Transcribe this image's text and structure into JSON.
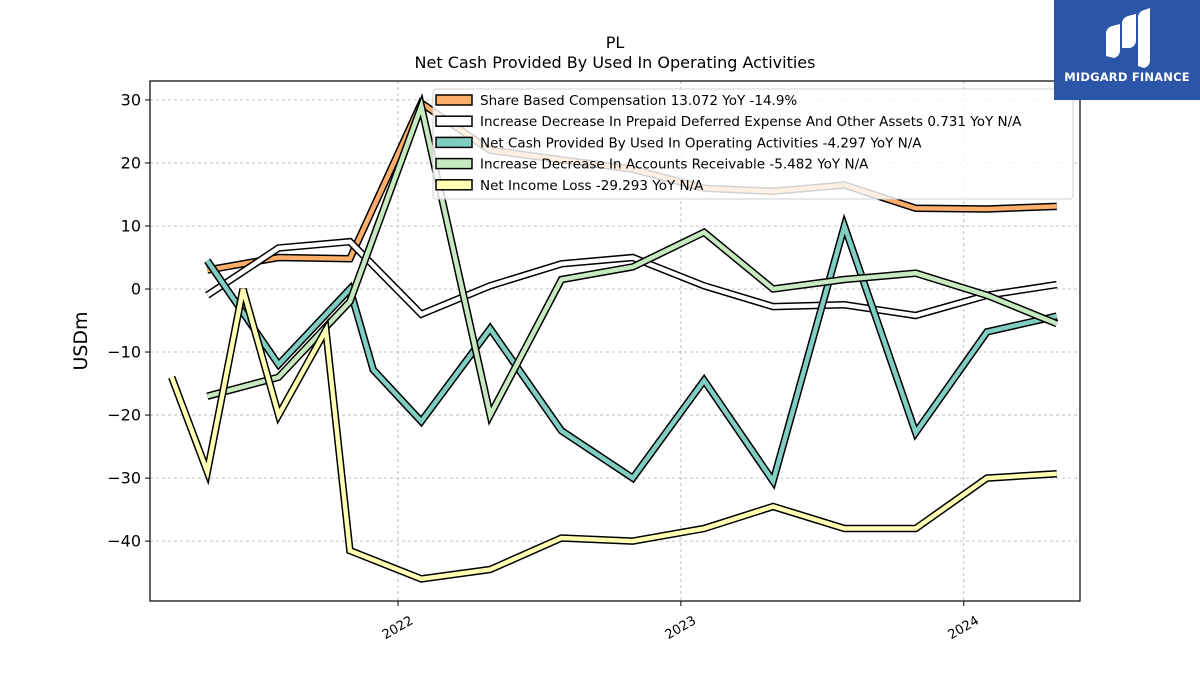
{
  "chart_data": {
    "type": "line",
    "title": "PL",
    "subtitle": "Net Cash Provided By Used In Operating Activities",
    "ylabel": "USDm",
    "xlabel": "",
    "ylim": [
      -49.5,
      33
    ],
    "xlim": [
      "2021-02-15",
      "2024-05-30"
    ],
    "yticks": [
      30,
      20,
      10,
      0,
      -10,
      -20,
      -30,
      -40
    ],
    "xticks": [
      {
        "date": "2022-01-01",
        "label": "2022"
      },
      {
        "date": "2023-01-01",
        "label": "2023"
      },
      {
        "date": "2024-01-01",
        "label": "2024"
      }
    ],
    "grid": true,
    "legend_position": "top-right",
    "series": [
      {
        "name": "Share Based Compensation",
        "legend_label": "Share Based Compensation  13.072 YoY -14.9%",
        "color": "#fdae6b",
        "points": [
          [
            "2021-04-30",
            3.0
          ],
          [
            "2021-07-31",
            5.0
          ],
          [
            "2021-10-31",
            4.8
          ],
          [
            "2022-01-31",
            29.5
          ],
          [
            "2022-04-30",
            22.0
          ],
          [
            "2022-07-31",
            20.5
          ],
          [
            "2022-10-31",
            19.0
          ],
          [
            "2023-01-31",
            16.0
          ],
          [
            "2023-04-30",
            15.5
          ],
          [
            "2023-07-31",
            16.5
          ],
          [
            "2023-10-31",
            12.8
          ],
          [
            "2024-01-31",
            12.7
          ],
          [
            "2024-04-30",
            13.1
          ]
        ]
      },
      {
        "name": "Increase Decrease In Prepaid Deferred Expense And Other Assets",
        "legend_label": "Increase Decrease In Prepaid Deferred Expense And Other Assets  0.731 YoY N/A",
        "color": "#ffffff",
        "points": [
          [
            "2021-04-30",
            -1.0
          ],
          [
            "2021-07-31",
            6.5
          ],
          [
            "2021-10-31",
            7.5
          ],
          [
            "2022-01-31",
            -4.0
          ],
          [
            "2022-04-30",
            0.5
          ],
          [
            "2022-07-31",
            4.0
          ],
          [
            "2022-10-31",
            5.0
          ],
          [
            "2023-01-31",
            0.5
          ],
          [
            "2023-04-30",
            -2.8
          ],
          [
            "2023-07-31",
            -2.5
          ],
          [
            "2023-10-31",
            -4.2
          ],
          [
            "2024-01-31",
            -1.0
          ],
          [
            "2024-04-30",
            0.7
          ]
        ]
      },
      {
        "name": "Net Cash Provided By Used In Operating Activities",
        "legend_label": "Net Cash Provided By Used In Operating Activities  -4.297 YoY N/A",
        "color": "#80cdc1",
        "points": [
          [
            "2021-04-30",
            4.5
          ],
          [
            "2021-07-31",
            -12.0
          ],
          [
            "2021-10-31",
            0.0
          ],
          [
            "2021-11-30",
            -12.8
          ],
          [
            "2022-01-31",
            -21.0
          ],
          [
            "2022-04-30",
            -6.3
          ],
          [
            "2022-07-31",
            -22.5
          ],
          [
            "2022-10-31",
            -30.0
          ],
          [
            "2023-01-31",
            -14.5
          ],
          [
            "2023-04-30",
            -30.5
          ],
          [
            "2023-07-31",
            10.0
          ],
          [
            "2023-10-31",
            -22.8
          ],
          [
            "2024-01-31",
            -6.8
          ],
          [
            "2024-04-30",
            -4.3
          ]
        ]
      },
      {
        "name": "Increase Decrease In Accounts Receivable",
        "legend_label": "Increase Decrease In Accounts Receivable  -5.482 YoY N/A",
        "color": "#c7e9c0",
        "points": [
          [
            "2021-04-30",
            -17.0
          ],
          [
            "2021-07-31",
            -14.0
          ],
          [
            "2021-10-31",
            -2.0
          ],
          [
            "2022-01-31",
            29.0
          ],
          [
            "2022-04-30",
            -20.0
          ],
          [
            "2022-07-31",
            1.5
          ],
          [
            "2022-10-31",
            3.5
          ],
          [
            "2023-01-31",
            9.0
          ],
          [
            "2023-04-30",
            0.0
          ],
          [
            "2023-07-31",
            1.5
          ],
          [
            "2023-10-31",
            2.5
          ],
          [
            "2024-01-31",
            -1.0
          ],
          [
            "2024-04-30",
            -5.5
          ]
        ]
      },
      {
        "name": "Net Income Loss",
        "legend_label": "Net Income Loss  -29.293 YoY N/A",
        "color": "#ffffb3",
        "points": [
          [
            "2021-03-15",
            -14.0
          ],
          [
            "2021-04-30",
            -29.0
          ],
          [
            "2021-06-15",
            0.0
          ],
          [
            "2021-07-31",
            -20.0
          ],
          [
            "2021-09-30",
            -6.5
          ],
          [
            "2021-10-31",
            -41.5
          ],
          [
            "2022-01-31",
            -46.0
          ],
          [
            "2022-04-30",
            -44.5
          ],
          [
            "2022-07-31",
            -39.5
          ],
          [
            "2022-10-31",
            -40.0
          ],
          [
            "2023-01-31",
            -38.0
          ],
          [
            "2023-04-30",
            -34.5
          ],
          [
            "2023-07-31",
            -38.0
          ],
          [
            "2023-10-31",
            -38.0
          ],
          [
            "2024-01-31",
            -30.0
          ],
          [
            "2024-04-30",
            -29.3
          ]
        ]
      }
    ]
  },
  "logo": {
    "text": "MIDGARD FINANCE",
    "background": "#2b56a8"
  }
}
